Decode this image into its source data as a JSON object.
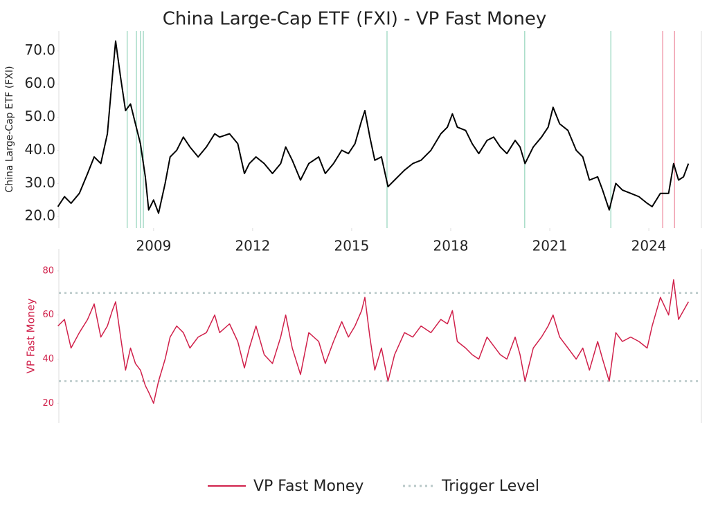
{
  "chart_data": [
    {
      "type": "line",
      "title": "China Large-Cap ETF (FXI) - VP Fast Money",
      "ylabel": "China Large-Cap ETF (FXI)",
      "x": [
        2006.1,
        2006.3,
        2006.5,
        2006.75,
        2007.0,
        2007.2,
        2007.4,
        2007.6,
        2007.75,
        2007.85,
        2008.0,
        2008.15,
        2008.3,
        2008.45,
        2008.6,
        2008.75,
        2008.85,
        2009.0,
        2009.15,
        2009.35,
        2009.5,
        2009.7,
        2009.9,
        2010.1,
        2010.35,
        2010.6,
        2010.85,
        2011.0,
        2011.3,
        2011.55,
        2011.75,
        2011.9,
        2012.1,
        2012.35,
        2012.6,
        2012.85,
        2013.0,
        2013.2,
        2013.45,
        2013.7,
        2014.0,
        2014.2,
        2014.45,
        2014.7,
        2014.9,
        2015.1,
        2015.3,
        2015.4,
        2015.55,
        2015.7,
        2015.9,
        2016.1,
        2016.3,
        2016.6,
        2016.85,
        2017.1,
        2017.4,
        2017.7,
        2017.9,
        2018.05,
        2018.2,
        2018.45,
        2018.65,
        2018.85,
        2019.1,
        2019.3,
        2019.5,
        2019.7,
        2019.95,
        2020.1,
        2020.25,
        2020.5,
        2020.75,
        2020.95,
        2021.1,
        2021.3,
        2021.55,
        2021.8,
        2022.0,
        2022.2,
        2022.45,
        2022.6,
        2022.8,
        2023.0,
        2023.2,
        2023.45,
        2023.7,
        2023.95,
        2024.1,
        2024.35,
        2024.6,
        2024.75,
        2024.9,
        2025.05,
        2025.2
      ],
      "values": [
        23,
        26,
        24,
        27,
        33,
        38,
        36,
        45,
        62,
        73,
        62,
        52,
        54,
        48,
        42,
        32,
        22,
        25,
        21,
        30,
        38,
        40,
        44,
        41,
        38,
        41,
        45,
        44,
        45,
        42,
        33,
        36,
        38,
        36,
        33,
        36,
        41,
        37,
        31,
        36,
        38,
        33,
        36,
        40,
        39,
        42,
        49,
        52,
        44,
        37,
        38,
        29,
        31,
        34,
        36,
        37,
        40,
        45,
        47,
        51,
        47,
        46,
        42,
        39,
        43,
        44,
        41,
        39,
        43,
        41,
        36,
        41,
        44,
        47,
        53,
        48,
        46,
        40,
        38,
        31,
        32,
        28,
        22,
        30,
        28,
        27,
        26,
        24,
        23,
        27,
        27,
        36,
        31,
        32,
        36
      ],
      "color": "#000000",
      "xlim": [
        2006.13,
        2025.55
      ],
      "xticks": [
        2009,
        2012,
        2015,
        2018,
        2021,
        2024
      ],
      "ylim": [
        16.5,
        76
      ],
      "yticks": [
        {
          "value": 20,
          "label": "20.0"
        },
        {
          "value": 30,
          "label": "30.0"
        },
        {
          "value": 40,
          "label": "40.0"
        },
        {
          "value": 50,
          "label": "50.0"
        },
        {
          "value": 60,
          "label": "60.0"
        },
        {
          "value": 70,
          "label": "70.0"
        }
      ],
      "buy_signals": [
        2008.2,
        2008.48,
        2008.6,
        2008.69,
        2016.07,
        2020.24,
        2022.85
      ],
      "buy_color": "#a8dcc8",
      "sell_signals": [
        2024.42,
        2024.78
      ],
      "sell_color": "#f0a0b0"
    },
    {
      "type": "line",
      "ylabel": "VP Fast Money",
      "x": [
        2006.1,
        2006.3,
        2006.5,
        2006.75,
        2007.0,
        2007.2,
        2007.4,
        2007.6,
        2007.75,
        2007.85,
        2008.0,
        2008.15,
        2008.3,
        2008.45,
        2008.6,
        2008.75,
        2008.85,
        2009.0,
        2009.15,
        2009.35,
        2009.5,
        2009.7,
        2009.9,
        2010.1,
        2010.35,
        2010.6,
        2010.85,
        2011.0,
        2011.3,
        2011.55,
        2011.75,
        2011.9,
        2012.1,
        2012.35,
        2012.6,
        2012.85,
        2013.0,
        2013.2,
        2013.45,
        2013.7,
        2014.0,
        2014.2,
        2014.45,
        2014.7,
        2014.9,
        2015.1,
        2015.3,
        2015.4,
        2015.55,
        2015.7,
        2015.9,
        2016.1,
        2016.3,
        2016.6,
        2016.85,
        2017.1,
        2017.4,
        2017.7,
        2017.9,
        2018.05,
        2018.2,
        2018.45,
        2018.65,
        2018.85,
        2019.1,
        2019.3,
        2019.5,
        2019.7,
        2019.95,
        2020.1,
        2020.25,
        2020.5,
        2020.75,
        2020.95,
        2021.1,
        2021.3,
        2021.55,
        2021.8,
        2022.0,
        2022.2,
        2022.45,
        2022.6,
        2022.8,
        2023.0,
        2023.2,
        2023.45,
        2023.7,
        2023.95,
        2024.1,
        2024.35,
        2024.6,
        2024.75,
        2024.9,
        2025.05,
        2025.2
      ],
      "series": [
        {
          "name": "VP Fast Money",
          "color": "#d0204a",
          "values": [
            55,
            58,
            45,
            52,
            58,
            65,
            50,
            55,
            62,
            66,
            50,
            35,
            45,
            38,
            35,
            28,
            25,
            20,
            30,
            40,
            50,
            55,
            52,
            45,
            50,
            52,
            60,
            52,
            56,
            48,
            36,
            45,
            55,
            42,
            38,
            50,
            60,
            45,
            33,
            52,
            48,
            38,
            48,
            57,
            50,
            55,
            62,
            68,
            50,
            35,
            45,
            30,
            42,
            52,
            50,
            55,
            52,
            58,
            56,
            62,
            48,
            45,
            42,
            40,
            50,
            46,
            42,
            40,
            50,
            42,
            30,
            45,
            50,
            55,
            60,
            50,
            45,
            40,
            45,
            35,
            48,
            40,
            30,
            52,
            48,
            50,
            48,
            45,
            55,
            68,
            60,
            76,
            58,
            62,
            66
          ]
        }
      ],
      "xlim": [
        2006.13,
        2025.55
      ],
      "ylim": [
        11,
        90
      ],
      "yticks": [
        20,
        40,
        60,
        80
      ],
      "trigger_levels": [
        70,
        30
      ],
      "trigger_label": "Trigger Level",
      "trigger_color": "#b8c8c8"
    }
  ]
}
